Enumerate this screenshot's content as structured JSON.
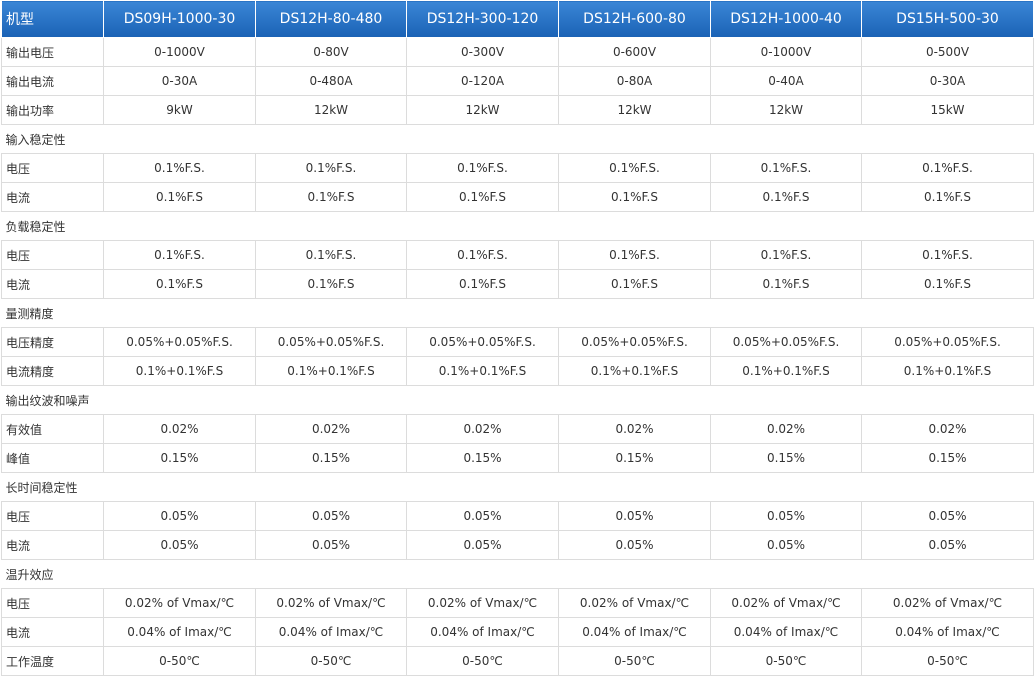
{
  "table": {
    "header": [
      "机型",
      "DS09H-1000-30",
      "DS12H-80-480",
      "DS12H-300-120",
      "DS12H-600-80",
      "DS12H-1000-40",
      "DS15H-500-30"
    ],
    "rows": [
      {
        "label": "输出电压",
        "cells": [
          "0-1000V",
          "0-80V",
          "0-300V",
          "0-600V",
          "0-1000V",
          "0-500V"
        ]
      },
      {
        "label": "输出电流",
        "cells": [
          "0-30A",
          "0-480A",
          "0-120A",
          "0-80A",
          "0-40A",
          "0-30A"
        ]
      },
      {
        "label": "输出功率",
        "cells": [
          "9kW",
          "12kW",
          "12kW",
          "12kW",
          "12kW",
          "15kW"
        ]
      },
      {
        "section": "输入稳定性"
      },
      {
        "label": "电压",
        "cells": [
          "0.1%F.S.",
          "0.1%F.S.",
          "0.1%F.S.",
          "0.1%F.S.",
          "0.1%F.S.",
          "0.1%F.S."
        ]
      },
      {
        "label": "电流",
        "cells": [
          "0.1%F.S",
          "0.1%F.S",
          "0.1%F.S",
          "0.1%F.S",
          "0.1%F.S",
          "0.1%F.S"
        ]
      },
      {
        "section": "负载稳定性"
      },
      {
        "label": "电压",
        "cells": [
          "0.1%F.S.",
          "0.1%F.S.",
          "0.1%F.S.",
          "0.1%F.S.",
          "0.1%F.S.",
          "0.1%F.S."
        ]
      },
      {
        "label": "电流",
        "cells": [
          "0.1%F.S",
          "0.1%F.S",
          "0.1%F.S",
          "0.1%F.S",
          "0.1%F.S",
          "0.1%F.S"
        ]
      },
      {
        "section": "量测精度"
      },
      {
        "label": "电压精度",
        "cells": [
          "0.05%+0.05%F.S.",
          "0.05%+0.05%F.S.",
          "0.05%+0.05%F.S.",
          "0.05%+0.05%F.S.",
          "0.05%+0.05%F.S.",
          "0.05%+0.05%F.S."
        ]
      },
      {
        "label": "电流精度",
        "cells": [
          "0.1%+0.1%F.S",
          "0.1%+0.1%F.S",
          "0.1%+0.1%F.S",
          "0.1%+0.1%F.S",
          "0.1%+0.1%F.S",
          "0.1%+0.1%F.S"
        ]
      },
      {
        "section": "输出纹波和噪声"
      },
      {
        "label": "有效值",
        "cells": [
          "0.02%",
          "0.02%",
          "0.02%",
          "0.02%",
          "0.02%",
          "0.02%"
        ]
      },
      {
        "label": "峰值",
        "cells": [
          "0.15%",
          "0.15%",
          "0.15%",
          "0.15%",
          "0.15%",
          "0.15%"
        ]
      },
      {
        "section": "长时间稳定性"
      },
      {
        "label": "电压",
        "cells": [
          "0.05%",
          "0.05%",
          "0.05%",
          "0.05%",
          "0.05%",
          "0.05%"
        ]
      },
      {
        "label": "电流",
        "cells": [
          "0.05%",
          "0.05%",
          "0.05%",
          "0.05%",
          "0.05%",
          "0.05%"
        ]
      },
      {
        "section": "温升效应"
      },
      {
        "label": "电压",
        "cells": [
          "0.02% of Vmax/℃",
          "0.02% of Vmax/℃",
          "0.02% of Vmax/℃",
          "0.02% of Vmax/℃",
          "0.02% of Vmax/℃",
          "0.02% of Vmax/℃"
        ]
      },
      {
        "label": "电流",
        "cells": [
          "0.04% of Imax/℃",
          "0.04% of Imax/℃",
          "0.04% of Imax/℃",
          "0.04% of Imax/℃",
          "0.04% of Imax/℃",
          "0.04% of Imax/℃"
        ]
      },
      {
        "label": "工作温度",
        "cells": [
          "0-50℃",
          "0-50℃",
          "0-50℃",
          "0-50℃",
          "0-50℃",
          "0-50℃"
        ]
      }
    ]
  }
}
